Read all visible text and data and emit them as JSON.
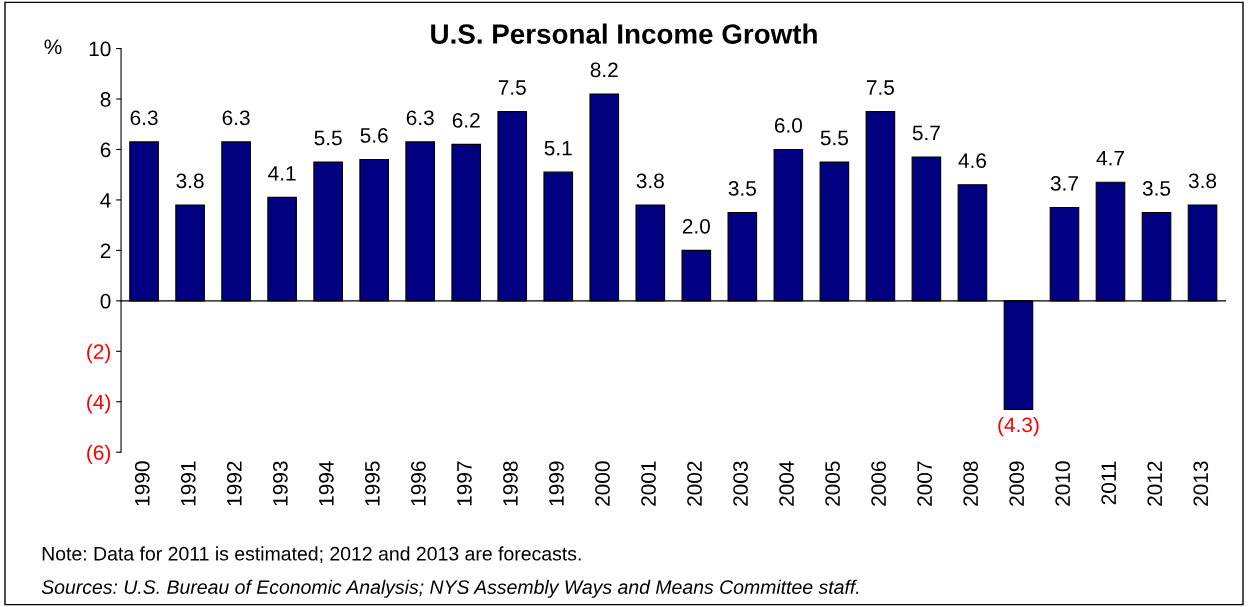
{
  "chart_data": {
    "type": "bar",
    "title": "U.S. Personal Income Growth",
    "ylabel": "%",
    "categories": [
      "1990",
      "1991",
      "1992",
      "1993",
      "1994",
      "1995",
      "1996",
      "1997",
      "1998",
      "1999",
      "2000",
      "2001",
      "2002",
      "2003",
      "2004",
      "2005",
      "2006",
      "2007",
      "2008",
      "2009",
      "2010",
      "2011",
      "2012",
      "2013"
    ],
    "values": [
      6.3,
      3.8,
      6.3,
      4.1,
      5.5,
      5.6,
      6.3,
      6.2,
      7.5,
      5.1,
      8.2,
      3.8,
      2.0,
      3.5,
      6.0,
      5.5,
      7.5,
      5.7,
      4.6,
      -4.3,
      3.7,
      4.7,
      3.5,
      3.8
    ],
    "value_labels": [
      "6.3",
      "3.8",
      "6.3",
      "4.1",
      "5.5",
      "5.6",
      "6.3",
      "6.2",
      "7.5",
      "5.1",
      "8.2",
      "3.8",
      "2.0",
      "3.5",
      "6.0",
      "5.5",
      "7.5",
      "5.7",
      "4.6",
      "(4.3)",
      "3.7",
      "4.7",
      "3.5",
      "3.8"
    ],
    "color": "#000080",
    "ylim": [
      -6,
      10
    ],
    "yticks": [
      {
        "value": -6,
        "label": "(6)"
      },
      {
        "value": -4,
        "label": "(4)"
      },
      {
        "value": -2,
        "label": "(2)"
      },
      0,
      2,
      4,
      6,
      8,
      10
    ],
    "legend": false,
    "annotations": [
      "Note: Data for 2011 is estimated; 2012 and 2013 are forecasts.",
      "Sources: U.S. Bureau of Economic Analysis; NYS Assembly Ways and Means Committee staff."
    ]
  }
}
